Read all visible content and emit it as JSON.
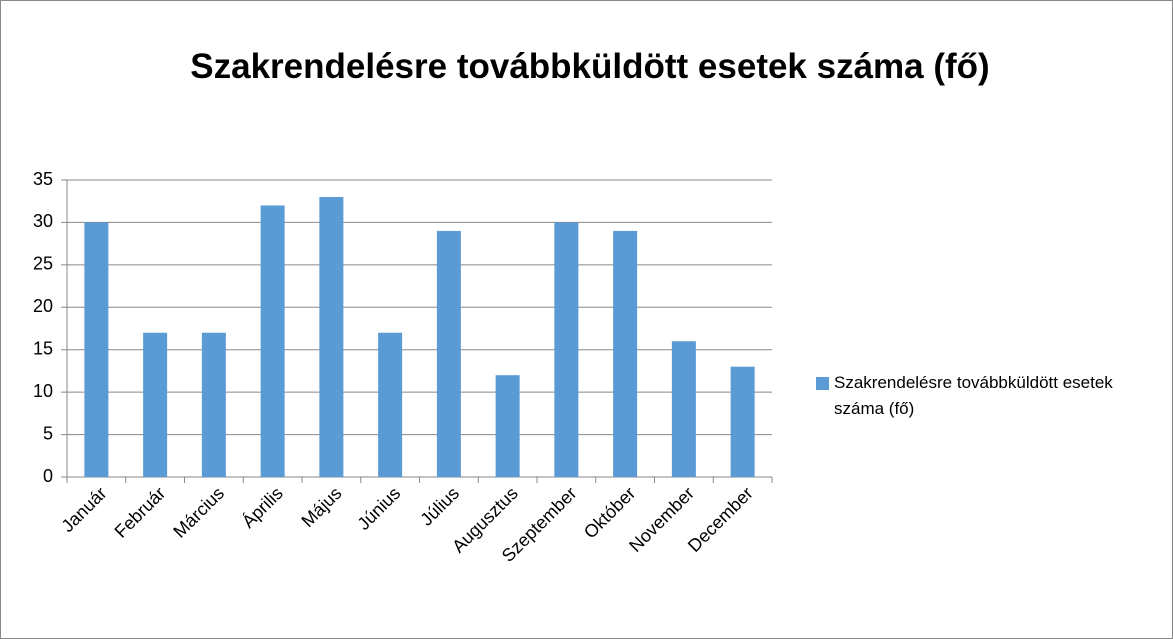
{
  "chart_data": {
    "type": "bar",
    "title": "Szakrendelésre továbbküldött esetek száma (fő)",
    "categories": [
      "Január",
      "Február",
      "Március",
      "Április",
      "Május",
      "Június",
      "Július",
      "Augusztus",
      "Szeptember",
      "Október",
      "November",
      "December"
    ],
    "series": [
      {
        "name": "Szakrendelésre továbbküldött esetek száma (fő)",
        "color": "#5b9bd5",
        "values": [
          30,
          17,
          17,
          32,
          33,
          17,
          29,
          12,
          30,
          29,
          16,
          13
        ]
      }
    ],
    "ylim": [
      0,
      35
    ],
    "yticks": [
      0,
      5,
      10,
      15,
      20,
      25,
      30,
      35
    ],
    "grid": true,
    "legend": "right"
  }
}
